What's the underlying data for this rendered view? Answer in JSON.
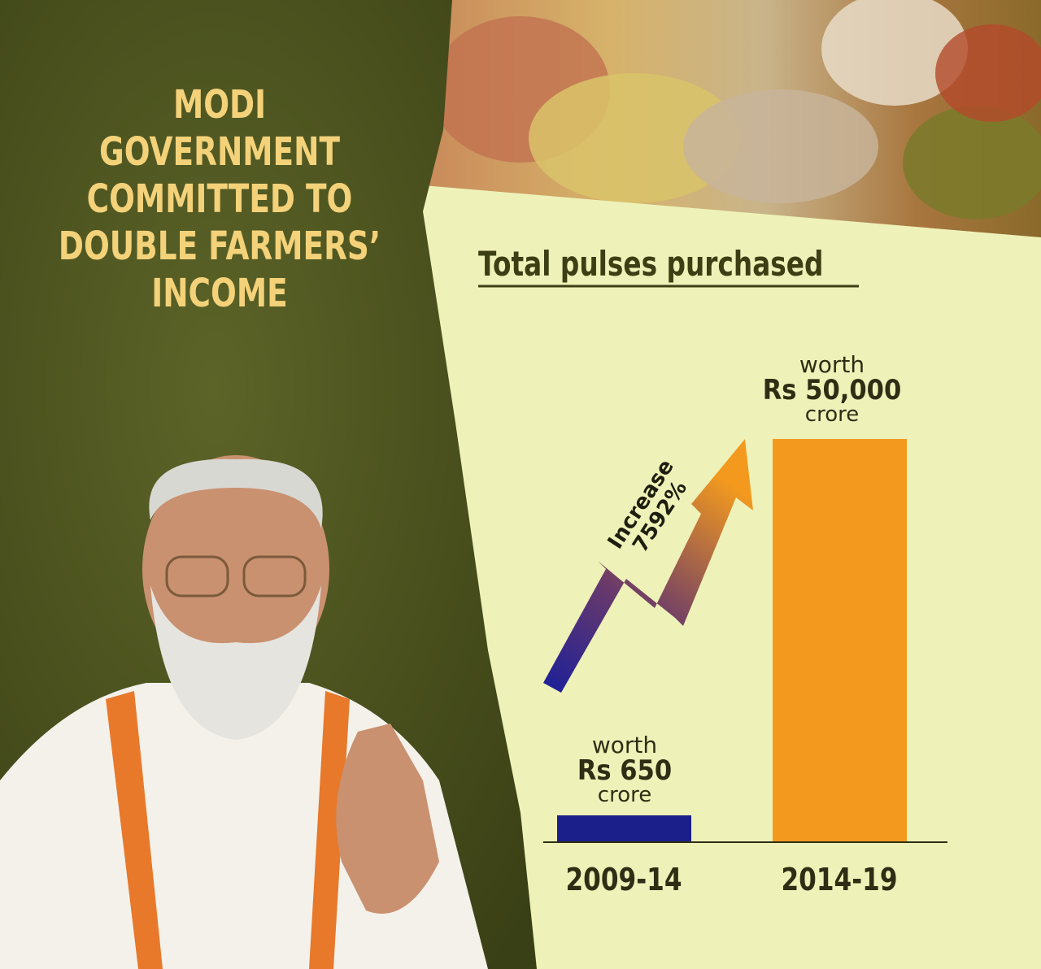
{
  "headline": [
    "MODI",
    "GOVERNMENT",
    "COMMITTED TO",
    "DOUBLE FARMERS’",
    "INCOME"
  ],
  "colors": {
    "panel": "#4d5420",
    "headline": "#f4d27a",
    "bar_2009": "#1b1f8a",
    "bar_2014": "#f39a1e",
    "background": "#eef2b8"
  },
  "chart_data": {
    "type": "bar",
    "title": "Total pulses purchased",
    "xlabel": "",
    "ylabel": "",
    "categories": [
      "2009-14",
      "2014-19"
    ],
    "values": [
      650,
      50000
    ],
    "unit": "Rs crore",
    "data_labels": [
      {
        "prefix": "worth",
        "value": "Rs 650",
        "suffix": "crore"
      },
      {
        "prefix": "worth",
        "value": "Rs 50,000",
        "suffix": "crore"
      }
    ],
    "annotation": {
      "line1": "Increase",
      "line2": "7592%"
    }
  }
}
